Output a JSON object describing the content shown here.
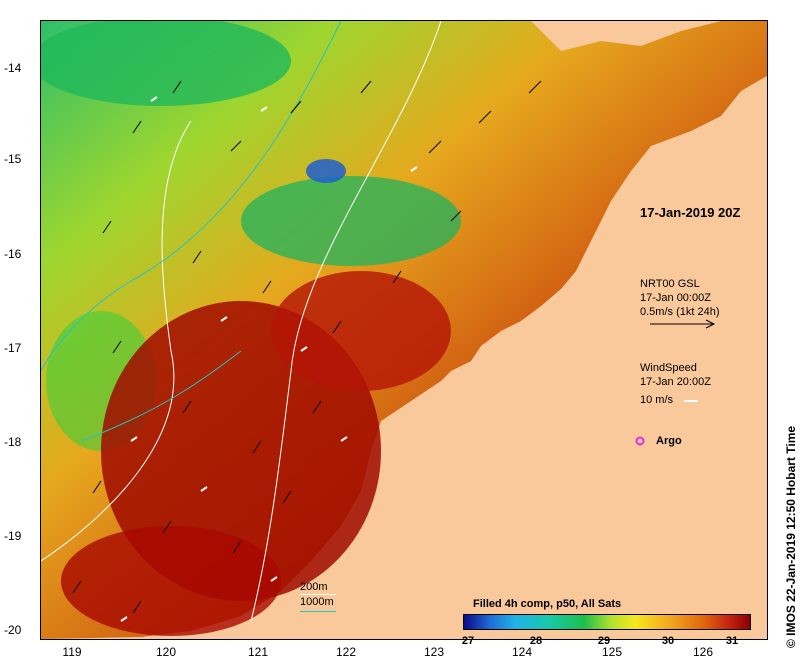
{
  "map": {
    "x_ticks": [
      "119",
      "120",
      "121",
      "122",
      "123",
      "124",
      "125",
      "126"
    ],
    "y_ticks": [
      "-14",
      "-15",
      "-16",
      "-17",
      "-18",
      "-19",
      "-20"
    ],
    "date_label": "17-Jan-2019 20Z",
    "currents_legend": {
      "title": "NRT00 GSL",
      "time": "17-Jan 00:00Z",
      "scale": "0.5m/s (1kt 24h)"
    },
    "wind_legend": {
      "title": "WindSpeed",
      "time": "17-Jan 20:00Z",
      "scale": "10 m/s"
    },
    "argo_label": "Argo",
    "isobaths": {
      "label_200": "200m",
      "label_1000": "1000m"
    },
    "colorbar": {
      "title": "Filled 4h comp, p50, All Sats",
      "ticks": [
        "27",
        "28",
        "29",
        "30",
        "31"
      ]
    },
    "copyright": "© IMOS 22-Jan-2019 12:50 Hobart Time",
    "colors": {
      "land": "#f9c89b",
      "isobath_200": "#ffffff",
      "isobath_1000": "#22c4c4",
      "argo": "#e030e0"
    }
  }
}
